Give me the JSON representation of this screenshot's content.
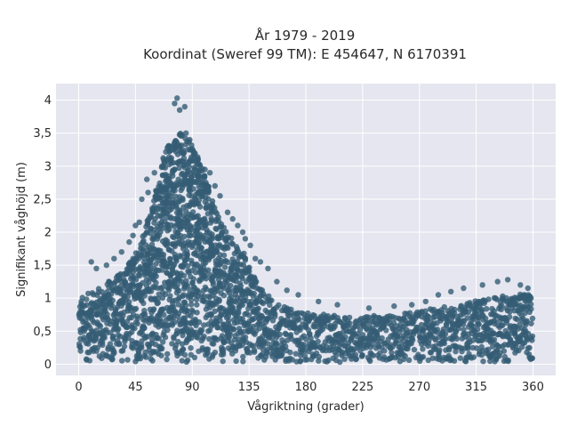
{
  "chart_data": {
    "type": "scatter",
    "title_line1": "År 1979 - 2019",
    "title_line2": "Koordinat (Sweref 99 TM): E 454647, N 6170391",
    "xlabel": "Vågriktning (grader)",
    "ylabel": "Signifikant våghöjd (m)",
    "xlim": [
      -18,
      378
    ],
    "ylim": [
      -0.17,
      4.25
    ],
    "x_ticks": [
      0,
      45,
      90,
      135,
      180,
      225,
      270,
      315,
      360
    ],
    "x_tick_labels": [
      "0",
      "45",
      "90",
      "135",
      "180",
      "225",
      "270",
      "315",
      "360"
    ],
    "y_ticks": [
      0,
      0.5,
      1,
      1.5,
      2,
      2.5,
      3,
      3.5,
      4
    ],
    "y_tick_labels": [
      "0",
      "0,5",
      "1",
      "1,5",
      "2",
      "2,5",
      "3",
      "3,5",
      "4"
    ],
    "grid": true,
    "series": [
      {
        "color": "#345c74",
        "upper_envelope": [
          [
            0,
            1.0
          ],
          [
            10,
            1.1
          ],
          [
            20,
            1.2
          ],
          [
            30,
            1.35
          ],
          [
            40,
            1.55
          ],
          [
            50,
            1.9
          ],
          [
            60,
            2.6
          ],
          [
            70,
            3.3
          ],
          [
            80,
            3.55
          ],
          [
            90,
            3.35
          ],
          [
            100,
            2.9
          ],
          [
            110,
            2.3
          ],
          [
            120,
            1.95
          ],
          [
            130,
            1.7
          ],
          [
            140,
            1.3
          ],
          [
            150,
            1.05
          ],
          [
            160,
            0.9
          ],
          [
            170,
            0.82
          ],
          [
            180,
            0.78
          ],
          [
            200,
            0.74
          ],
          [
            220,
            0.72
          ],
          [
            240,
            0.74
          ],
          [
            260,
            0.78
          ],
          [
            280,
            0.85
          ],
          [
            300,
            0.9
          ],
          [
            320,
            0.98
          ],
          [
            340,
            1.05
          ],
          [
            350,
            1.08
          ],
          [
            360,
            1.05
          ]
        ],
        "outliers": [
          [
            78,
            4.03
          ],
          [
            76,
            3.95
          ],
          [
            80,
            3.85
          ],
          [
            84,
            3.9
          ],
          [
            85,
            3.5
          ],
          [
            88,
            3.4
          ],
          [
            72,
            3.3
          ],
          [
            70,
            3.1
          ],
          [
            66,
            3.0
          ],
          [
            60,
            2.9
          ],
          [
            54,
            2.8
          ],
          [
            55,
            2.6
          ],
          [
            50,
            2.5
          ],
          [
            48,
            2.15
          ],
          [
            45,
            2.1
          ],
          [
            100,
            2.95
          ],
          [
            104,
            2.9
          ],
          [
            108,
            2.7
          ],
          [
            112,
            2.55
          ],
          [
            118,
            2.3
          ],
          [
            122,
            2.2
          ],
          [
            126,
            2.1
          ],
          [
            130,
            2.0
          ],
          [
            132,
            1.9
          ],
          [
            136,
            1.8
          ],
          [
            140,
            1.6
          ],
          [
            144,
            1.55
          ],
          [
            150,
            1.45
          ],
          [
            157,
            1.25
          ],
          [
            165,
            1.12
          ],
          [
            174,
            1.05
          ],
          [
            190,
            0.95
          ],
          [
            205,
            0.9
          ],
          [
            230,
            0.85
          ],
          [
            250,
            0.88
          ],
          [
            264,
            0.9
          ],
          [
            275,
            0.95
          ],
          [
            285,
            1.05
          ],
          [
            295,
            1.1
          ],
          [
            305,
            1.15
          ],
          [
            320,
            1.2
          ],
          [
            332,
            1.25
          ],
          [
            340,
            1.28
          ],
          [
            350,
            1.2
          ],
          [
            356,
            1.15
          ],
          [
            10,
            1.55
          ],
          [
            14,
            1.45
          ],
          [
            22,
            1.5
          ],
          [
            28,
            1.6
          ],
          [
            34,
            1.7
          ],
          [
            40,
            1.85
          ],
          [
            43,
            1.95
          ]
        ]
      }
    ]
  }
}
